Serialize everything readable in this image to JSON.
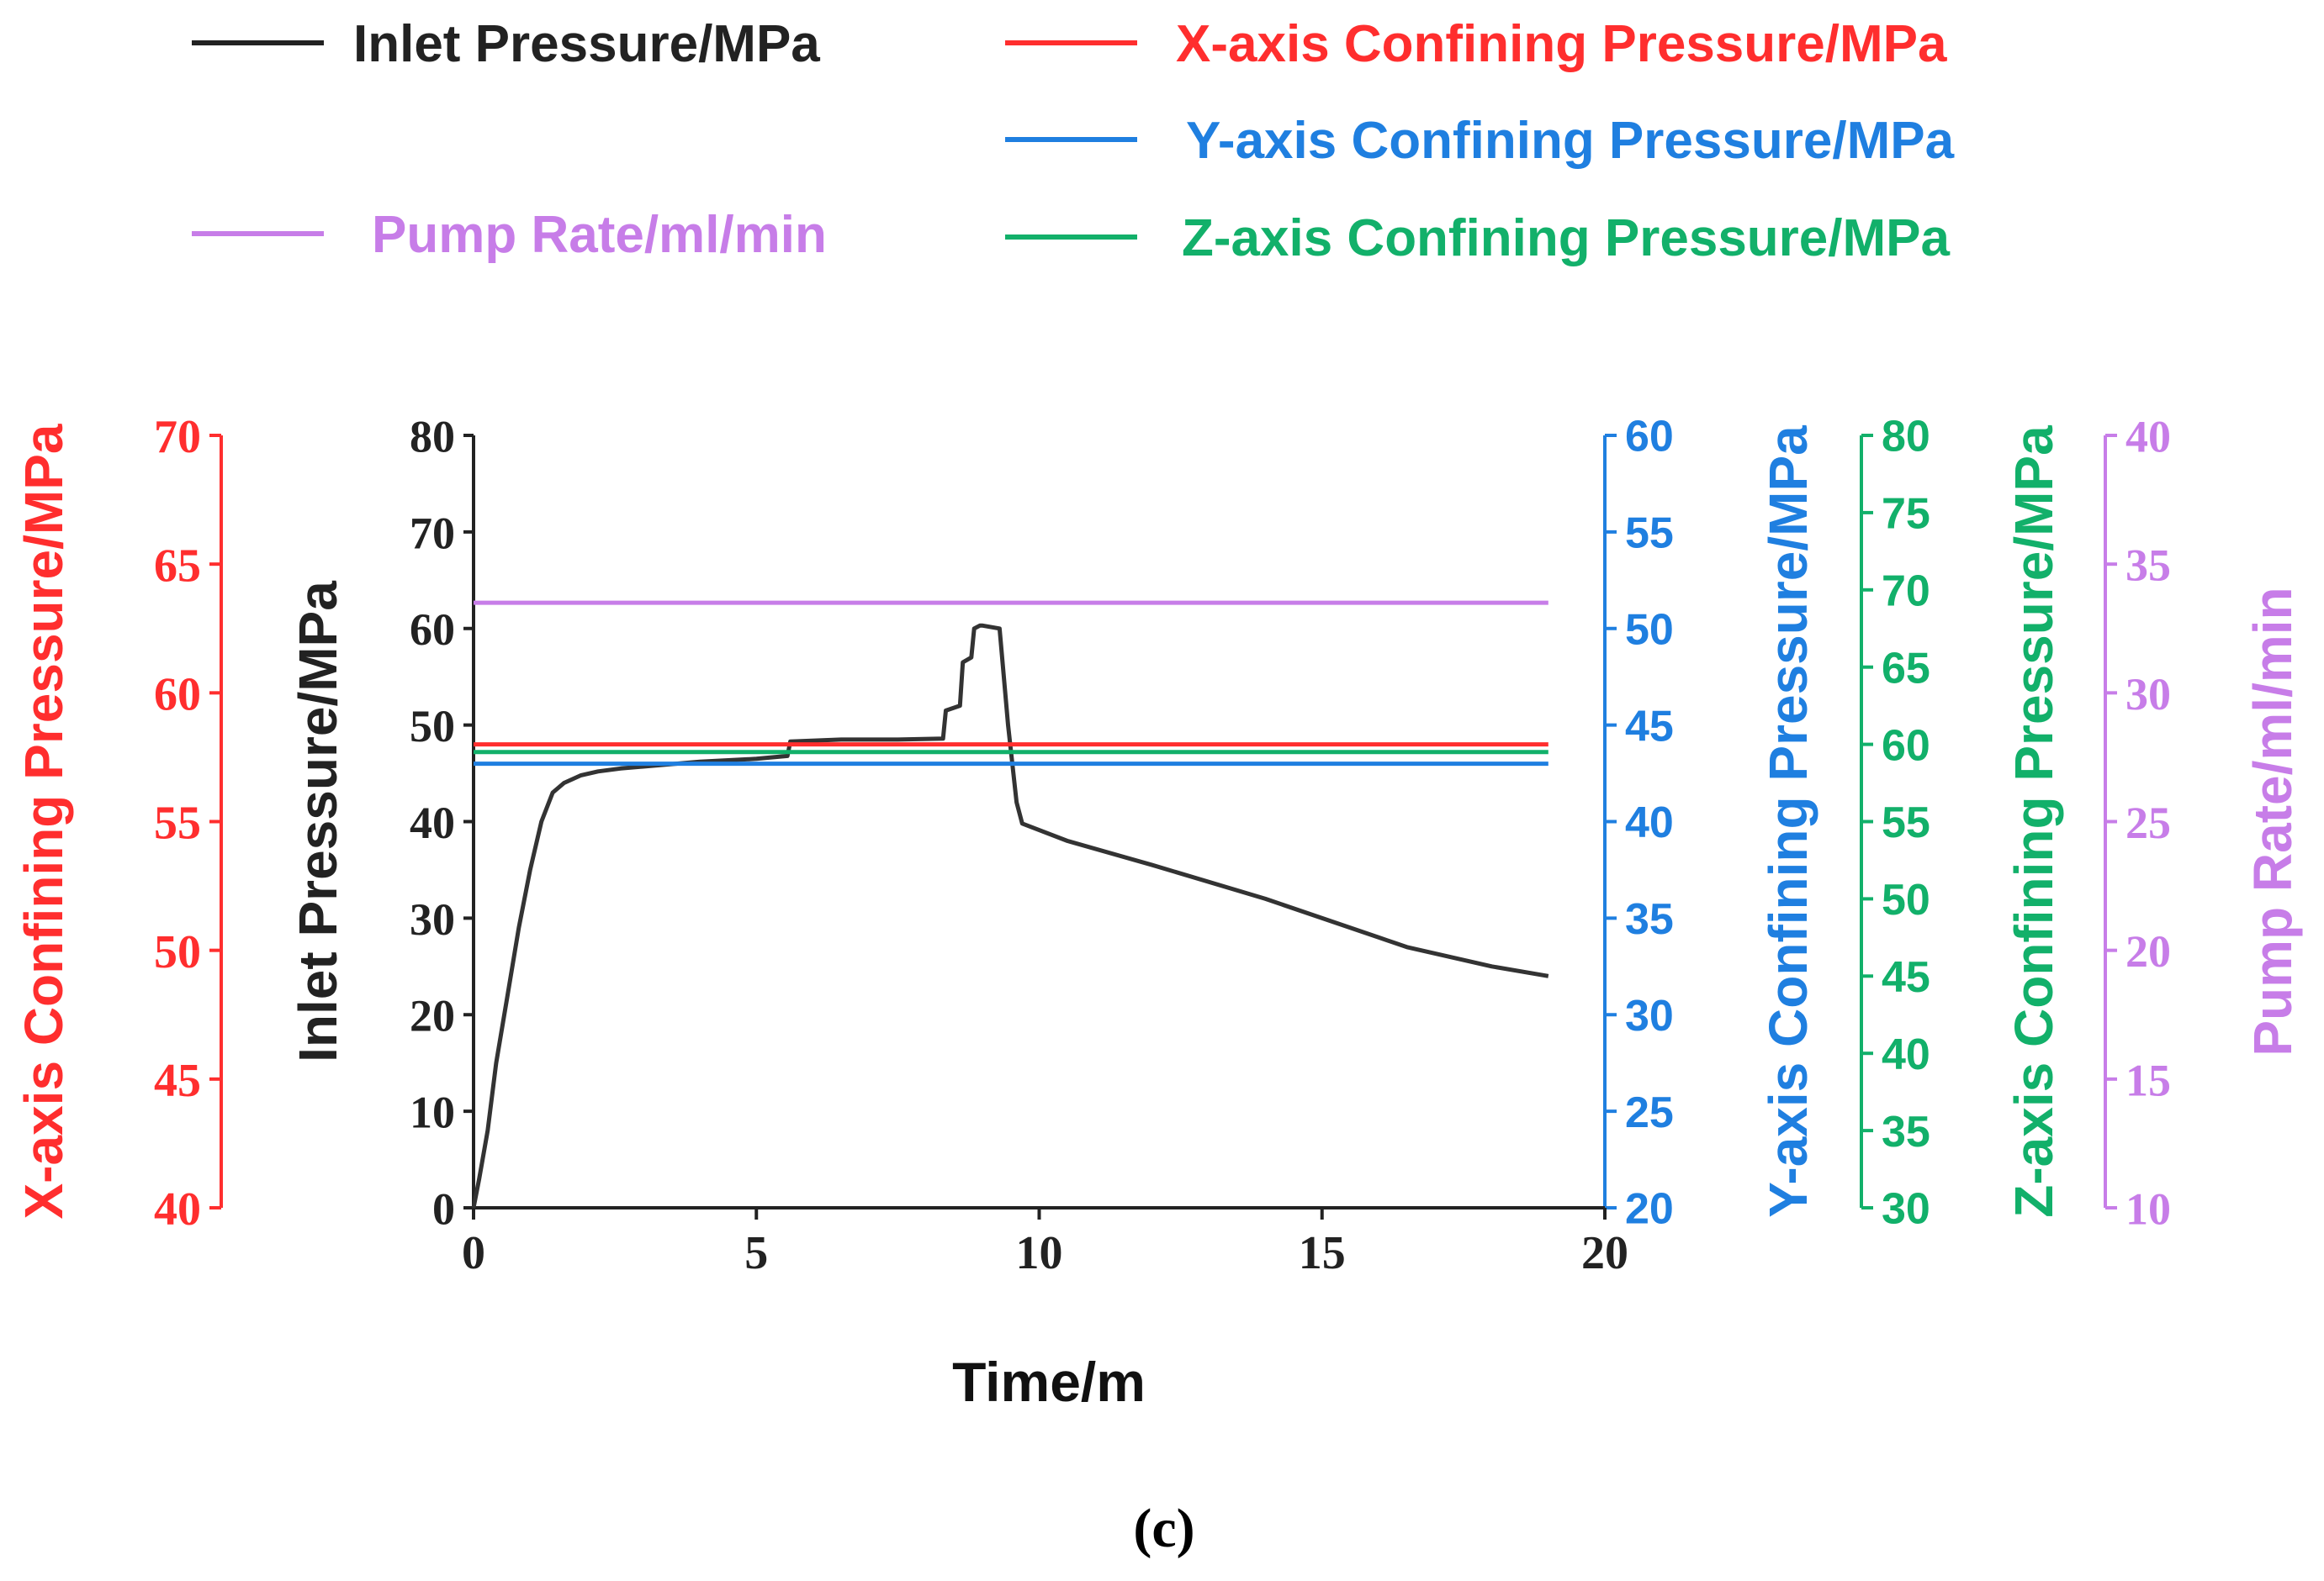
{
  "chart_data": {
    "type": "line",
    "panel_label": "(c)",
    "xlabel": "Time/m",
    "xlim": [
      0,
      20
    ],
    "xticks": [
      0,
      5,
      10,
      15,
      20
    ],
    "axes": [
      {
        "id": "inlet",
        "label": "Inlet Pressure/MPa",
        "color": "#222222",
        "side": "inner-left",
        "lim": [
          0,
          80
        ],
        "ticks": [
          0,
          10,
          20,
          30,
          40,
          50,
          60,
          70,
          80
        ]
      },
      {
        "id": "x",
        "label": "X-axis Confining Pressure/MPa",
        "color": "#ff2e2e",
        "side": "outer-left",
        "lim": [
          40,
          70
        ],
        "ticks": [
          40,
          45,
          50,
          55,
          60,
          65,
          70
        ]
      },
      {
        "id": "y",
        "label": "Y-axis Confining Pressure/MPa",
        "color": "#1f7fe0",
        "side": "right-1",
        "lim": [
          20,
          60
        ],
        "ticks": [
          20,
          25,
          30,
          35,
          40,
          45,
          50,
          55,
          60
        ]
      },
      {
        "id": "z",
        "label": "Z-axis Confining Pressure/MPa",
        "color": "#12b06a",
        "side": "right-2",
        "lim": [
          30,
          80
        ],
        "ticks": [
          30,
          35,
          40,
          45,
          50,
          55,
          60,
          65,
          70,
          75,
          80
        ]
      },
      {
        "id": "pump",
        "label": "Pump Rate/ml/min",
        "color": "#c77de8",
        "side": "right-3",
        "lim": [
          10,
          40
        ],
        "ticks": [
          10,
          15,
          20,
          25,
          30,
          35,
          40
        ]
      }
    ],
    "legend": {
      "placement": "top",
      "entries": [
        {
          "series": "inlet",
          "label": "Inlet Pressure/MPa",
          "color": "#222222"
        },
        {
          "series": "x",
          "label": "X-axis Confining Pressure/MPa",
          "color": "#ff2e2e"
        },
        {
          "series": "y",
          "label": "Y-axis Confining Pressure/MPa",
          "color": "#1f7fe0"
        },
        {
          "series": "pump",
          "label": "Pump Rate/ml/min",
          "color": "#c77de8"
        },
        {
          "series": "z",
          "label": "Z-axis Confining Pressure/MPa",
          "color": "#12b06a"
        }
      ]
    },
    "series": [
      {
        "name": "Inlet Pressure/MPa",
        "axis": "inlet",
        "color": "#333333",
        "x": [
          0,
          0.1,
          0.25,
          0.4,
          0.6,
          0.8,
          1.0,
          1.2,
          1.4,
          1.6,
          1.9,
          2.2,
          2.6,
          3.0,
          4.0,
          5.0,
          5.55,
          5.6,
          6.5,
          7.5,
          8.3,
          8.35,
          8.6,
          8.65,
          8.8,
          8.85,
          8.95,
          9.0,
          9.3,
          9.45,
          9.6,
          9.7,
          10.5,
          12,
          14,
          16,
          16.5,
          18,
          19
        ],
        "values": [
          0,
          3,
          8,
          15,
          22,
          29,
          35,
          40,
          43,
          44,
          44.8,
          45.2,
          45.5,
          45.7,
          46.2,
          46.5,
          46.8,
          48.3,
          48.5,
          48.5,
          48.6,
          51.5,
          52,
          56.5,
          57,
          60,
          60.3,
          60.3,
          60,
          50,
          42,
          39.8,
          38,
          35.5,
          32,
          28,
          27,
          25,
          24
        ]
      },
      {
        "name": "X-axis Confining Pressure/MPa",
        "axis": "x",
        "color": "#ff2e2e",
        "x": [
          0,
          19
        ],
        "values": [
          58,
          58
        ]
      },
      {
        "name": "Y-axis Confining Pressure/MPa",
        "axis": "y",
        "color": "#1f7fe0",
        "x": [
          0,
          19
        ],
        "values": [
          43,
          43
        ]
      },
      {
        "name": "Z-axis Confining Pressure/MPa",
        "axis": "z",
        "color": "#12b06a",
        "x": [
          0,
          19
        ],
        "values": [
          59.5,
          59.5
        ]
      },
      {
        "name": "Pump Rate/ml/min",
        "axis": "pump",
        "color": "#c77de8",
        "x": [
          0,
          19
        ],
        "values": [
          33.5,
          33.5
        ]
      }
    ]
  }
}
